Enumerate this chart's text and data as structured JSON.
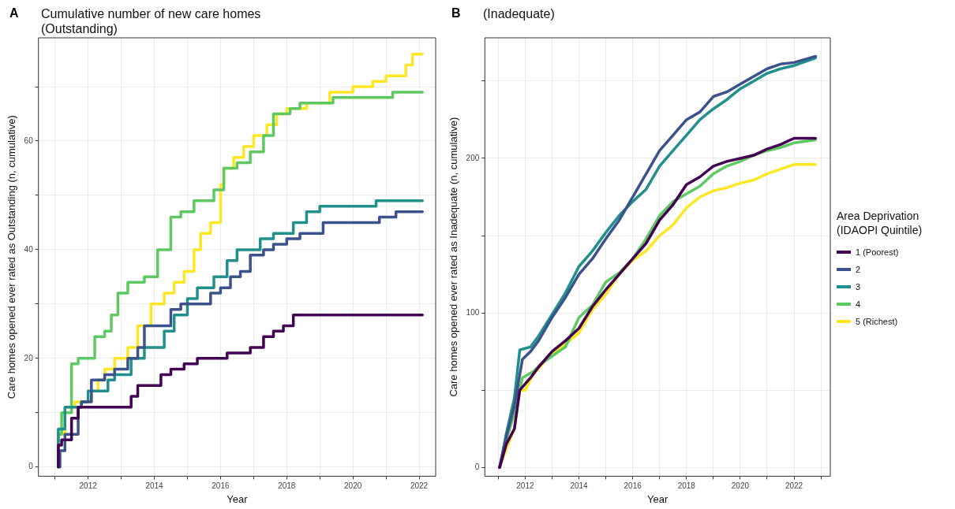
{
  "chart_data": [
    {
      "type": "step",
      "title": "Cumulative number of new care homes\n(Outstanding)",
      "xlabel": "Year",
      "ylabel": "Care homes opened ever rated as Outstanding (n, cumulative)",
      "annotations": [
        "A"
      ],
      "legend": false,
      "grid": true,
      "xlim": [
        2010.5,
        2022.5
      ],
      "ylim": [
        -1.7,
        79
      ],
      "xticks": [
        {
          "value": 2011,
          "label": null
        },
        2012,
        {
          "value": 2013,
          "label": null
        },
        2014,
        {
          "value": 2015,
          "label": null
        },
        2016,
        {
          "value": 2017,
          "label": null
        },
        2018,
        {
          "value": 2019,
          "label": null
        },
        2020,
        {
          "value": 2021,
          "label": null
        },
        2022
      ],
      "yticks": [
        0,
        {
          "value": 10,
          "label": null
        },
        20,
        {
          "value": 30,
          "label": null
        },
        40,
        {
          "value": 50,
          "label": null
        },
        60,
        {
          "value": 70,
          "label": null
        }
      ],
      "series": [
        {
          "color": "#440154",
          "x": [
            2011.1,
            2011.2,
            2011.5,
            2011.7,
            2013.3,
            2013.5,
            2014.2,
            2014.5,
            2014.9,
            2015.3,
            2016.2,
            2016.9,
            2017.3,
            2017.6,
            2017.9,
            2018.2,
            2020.7,
            2022.1
          ],
          "values": [
            0,
            4,
            5,
            9,
            11,
            13,
            15,
            17,
            18,
            19,
            20,
            21,
            22,
            24,
            25,
            26,
            28,
            28
          ]
        },
        {
          "color": "#3b528b",
          "x": [
            2011.15,
            2011.3,
            2011.7,
            2011.8,
            2012.1,
            2012.5,
            2012.8,
            2013.2,
            2013.5,
            2013.7,
            2014.5,
            2014.8,
            2015.7,
            2016.0,
            2016.3,
            2016.6,
            2016.9,
            2017.3,
            2017.6,
            2018.0,
            2018.4,
            2019.1,
            2020.8,
            2021.3,
            2022.1
          ],
          "values": [
            0,
            3,
            6,
            11,
            12,
            16,
            17,
            18,
            20,
            22,
            26,
            29,
            30,
            32,
            33,
            35,
            36,
            39,
            40,
            41,
            42,
            43,
            45,
            46,
            47
          ]
        },
        {
          "color": "#21908d",
          "x": [
            2011.1,
            2011.3,
            2011.8,
            2012.0,
            2012.6,
            2012.8,
            2013.3,
            2013.7,
            2014.3,
            2014.6,
            2015.0,
            2015.3,
            2015.8,
            2016.2,
            2016.5,
            2017.2,
            2017.6,
            2018.2,
            2018.6,
            2019.0,
            2020.7,
            2022.0,
            2022.1
          ],
          "values": [
            0,
            7,
            11,
            12,
            14,
            16,
            17,
            20,
            22,
            25,
            28,
            31,
            33,
            35,
            38,
            40,
            42,
            43,
            45,
            47,
            48,
            49,
            49
          ]
        },
        {
          "color": "#5ec962",
          "x": [
            2011.1,
            2011.2,
            2011.5,
            2011.7,
            2012.2,
            2012.5,
            2012.7,
            2012.9,
            2013.2,
            2013.7,
            2014.1,
            2014.5,
            2014.8,
            2015.2,
            2015.8,
            2016.1,
            2016.5,
            2016.9,
            2017.3,
            2017.6,
            2018.1,
            2018.4,
            2019.4,
            2021.2,
            2021.6,
            2022.1
          ],
          "values": [
            0,
            6,
            10,
            19,
            20,
            24,
            25,
            28,
            32,
            34,
            35,
            40,
            46,
            47,
            49,
            51,
            55,
            56,
            58,
            61,
            65,
            66,
            67,
            68,
            69,
            69
          ]
        },
        {
          "color": "#fde725",
          "x": [
            2011.1,
            2011.3,
            2011.6,
            2012.1,
            2012.3,
            2012.5,
            2012.8,
            2013.2,
            2013.5,
            2013.9,
            2014.3,
            2014.6,
            2014.9,
            2015.2,
            2015.4,
            2015.7,
            2016.0,
            2016.1,
            2016.4,
            2016.7,
            2017.0,
            2017.4,
            2017.7,
            2018.0,
            2018.6,
            2019.3,
            2020.0,
            2020.6,
            2021.0,
            2021.6,
            2021.8,
            2022.1
          ],
          "values": [
            0,
            6,
            11,
            12,
            14,
            16,
            18,
            20,
            22,
            26,
            30,
            32,
            34,
            36,
            40,
            43,
            45,
            52,
            55,
            57,
            59,
            61,
            63,
            65,
            66,
            67,
            69,
            70,
            71,
            72,
            74,
            76
          ]
        }
      ]
    },
    {
      "type": "line",
      "title": "(Inadequate)",
      "xlabel": "Year",
      "ylabel": "Care homes opened ever rated as Inadequate (n, cumulative)",
      "annotations": [
        "B"
      ],
      "legend": "right",
      "legend_title": "Area Deprivation\n(IDAOPI Quintile)",
      "grid": true,
      "xlim": [
        2010.5,
        2023.35
      ],
      "ylim": [
        -5.7,
        278
      ],
      "xticks": [
        {
          "value": 2011,
          "label": null
        },
        2012,
        {
          "value": 2013,
          "label": null
        },
        2014,
        {
          "value": 2015,
          "label": null
        },
        2016,
        {
          "value": 2017,
          "label": null
        },
        2018,
        {
          "value": 2019,
          "label": null
        },
        2020,
        {
          "value": 2021,
          "label": null
        },
        2022,
        {
          "value": 2023,
          "label": null
        }
      ],
      "yticks": [
        0,
        {
          "value": 50,
          "label": null
        },
        100,
        {
          "value": 150,
          "label": null
        },
        200,
        {
          "value": 250,
          "label": null
        }
      ],
      "series": [
        {
          "name": "1 (Poorest)",
          "color": "#440154",
          "x": [
            2011.05,
            2011.3,
            2011.6,
            2011.8,
            2012.2,
            2012.5,
            2013,
            2013.5,
            2014,
            2014.5,
            2015,
            2015.5,
            2016,
            2016.5,
            2017,
            2017.5,
            2018,
            2018.5,
            2019,
            2019.5,
            2020,
            2020.5,
            2021,
            2021.5,
            2022,
            2022.8
          ],
          "values": [
            0,
            15,
            25,
            50,
            58,
            65,
            75,
            82,
            90,
            104,
            115,
            125,
            135,
            145,
            160,
            170,
            183,
            188,
            195,
            198,
            200,
            202,
            206,
            209,
            213,
            213
          ]
        },
        {
          "name": "2",
          "color": "#3b528b",
          "x": [
            2011.05,
            2011.3,
            2011.6,
            2011.9,
            2012.2,
            2012.5,
            2013,
            2013.5,
            2014,
            2014.5,
            2015,
            2015.5,
            2016,
            2016.5,
            2017,
            2017.5,
            2018,
            2018.5,
            2019,
            2019.5,
            2020,
            2020.5,
            2021,
            2021.5,
            2022,
            2022.8
          ],
          "values": [
            0,
            20,
            40,
            70,
            75,
            82,
            97,
            110,
            125,
            135,
            148,
            160,
            175,
            190,
            205,
            215,
            225,
            230,
            240,
            243,
            248,
            253,
            258,
            261,
            262,
            266
          ]
        },
        {
          "name": "3",
          "color": "#21908d",
          "x": [
            2011.05,
            2011.3,
            2011.6,
            2011.8,
            2012.2,
            2012.5,
            2013,
            2013.5,
            2014,
            2014.5,
            2015,
            2015.5,
            2016,
            2016.5,
            2017,
            2017.5,
            2018,
            2018.5,
            2019,
            2019.5,
            2020,
            2020.5,
            2021,
            2021.5,
            2022,
            2022.8
          ],
          "values": [
            0,
            22,
            45,
            76,
            78,
            85,
            99,
            113,
            130,
            140,
            152,
            163,
            172,
            180,
            195,
            205,
            215,
            225,
            232,
            238,
            245,
            250,
            255,
            258,
            260,
            265
          ]
        },
        {
          "name": "4",
          "color": "#5ec962",
          "x": [
            2011.05,
            2011.3,
            2011.6,
            2011.9,
            2012.3,
            2012.6,
            2013,
            2013.5,
            2014,
            2014.5,
            2015,
            2015.5,
            2016,
            2016.5,
            2017,
            2017.5,
            2018,
            2018.5,
            2019,
            2019.5,
            2020,
            2020.5,
            2021,
            2021.5,
            2022,
            2022.8
          ],
          "values": [
            0,
            18,
            35,
            58,
            62,
            67,
            72,
            78,
            97,
            105,
            120,
            126,
            135,
            148,
            163,
            172,
            177,
            182,
            190,
            195,
            198,
            202,
            205,
            207,
            210,
            212
          ]
        },
        {
          "name": "5 (Richest)",
          "color": "#fde725",
          "x": [
            2011.05,
            2011.3,
            2011.6,
            2011.8,
            2012.0,
            2012.3,
            2012.7,
            2013,
            2013.5,
            2014,
            2014.5,
            2015,
            2015.5,
            2016,
            2016.5,
            2017,
            2017.5,
            2018,
            2018.5,
            2019,
            2019.5,
            2020,
            2020.5,
            2021,
            2021.5,
            2022,
            2022.8
          ],
          "values": [
            0,
            12,
            25,
            50,
            50,
            60,
            68,
            74,
            80,
            87,
            102,
            112,
            125,
            134,
            140,
            150,
            157,
            168,
            175,
            179,
            181,
            184,
            186,
            190,
            193,
            196,
            196
          ]
        }
      ]
    }
  ]
}
